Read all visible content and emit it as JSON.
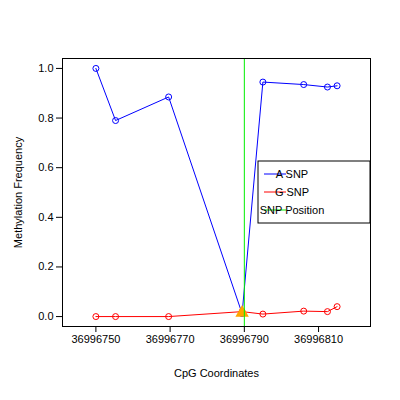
{
  "chart_data": {
    "type": "line",
    "x_label": "CpG Coordinates",
    "y_label": "Methylation Frequency",
    "x": [
      36996750,
      36996755.3,
      36996769.6,
      36996789.4,
      36996795,
      36996806,
      36996812.4,
      36996815
    ],
    "series": [
      {
        "name": "A SNP",
        "color": "blue",
        "marker": "circle",
        "values": [
          1.0,
          0.79,
          0.885,
          0.012,
          0.945,
          0.935,
          0.925,
          0.93
        ]
      },
      {
        "name": "G SNP",
        "color": "red",
        "marker": "circle",
        "values": [
          0.0,
          0.0,
          0.0,
          0.02,
          0.01,
          0.022,
          0.02,
          0.04
        ]
      },
      {
        "color": "orange",
        "marker": "triangle",
        "type": "scatter",
        "values": [
          null,
          null,
          null,
          0.015,
          null,
          null,
          null,
          null
        ]
      },
      {
        "name": "SNP Position",
        "color": "#00ee00",
        "type": "rule",
        "x": [
          36996790
        ]
      }
    ],
    "xlim": [
      36996741,
      36996824
    ],
    "ylim": [
      -0.04,
      1.04
    ],
    "xticks": [
      36996750,
      36996770,
      36996790,
      36996810
    ],
    "yticks": [
      {
        "value": 0,
        "label": "0.0"
      },
      0.2,
      0.4,
      0.6,
      0.8,
      {
        "value": 1,
        "label": "1.0"
      }
    ],
    "legend": "right",
    "grid": false
  }
}
